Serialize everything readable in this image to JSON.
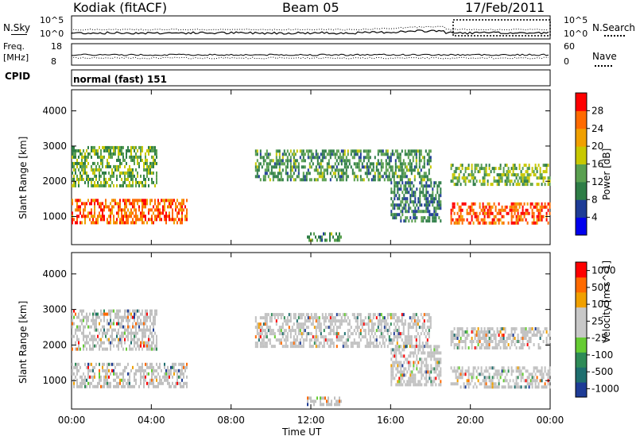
{
  "header": {
    "radar": "Kodiak (fitACF)",
    "beam": "Beam 05",
    "date": "17/Feb/2011"
  },
  "sky_panel": {
    "left_label": "N.Sky",
    "right_label": "N.Search",
    "left_ticks": [
      "10^5",
      "10^0"
    ],
    "right_ticks": [
      "10^5",
      "10^0"
    ]
  },
  "freq_panel": {
    "left_label_1": "Freq.",
    "left_label_2": "[MHz]",
    "right_label": "Nave",
    "left_ticks": [
      "18",
      "8"
    ],
    "right_ticks": [
      "60",
      "0"
    ]
  },
  "cpid": {
    "label": "CPID",
    "mode": "normal (fast) 151"
  },
  "colors": {
    "power_scale": [
      "#0000ee",
      "#1e3c96",
      "#2e7d46",
      "#5aa050",
      "#c8c800",
      "#f0a000",
      "#ff6a00",
      "#ff0000"
    ],
    "velocity_scale": [
      "#ff0000",
      "#ff6a00",
      "#f0a000",
      "#c8c8c8",
      "#c8c8c8",
      "#66cc33",
      "#2e8b57",
      "#1e6e6e",
      "#1e3c96"
    ],
    "ground_scatter": "#c0c0c0"
  },
  "chart_data": [
    {
      "type": "heatmap",
      "title": "",
      "xlabel": "Time UT",
      "ylabel": "Slant Range [km]",
      "xlim": [
        "00:00",
        "24:00"
      ],
      "ylim": [
        200,
        4600
      ],
      "x_ticks": [
        "00:00",
        "04:00",
        "08:00",
        "12:00",
        "16:00",
        "20:00",
        "00:00"
      ],
      "y_ticks": [
        1000,
        2000,
        3000,
        4000
      ],
      "colorbar": {
        "label": "Power [dB]",
        "min": 0,
        "max": 32,
        "ticks": [
          4,
          8,
          12,
          16,
          20,
          24,
          28
        ]
      },
      "echo_regions": [
        {
          "start_h": 0.0,
          "end_h": 5.8,
          "range_min": 800,
          "range_max": 1500,
          "value": 26
        },
        {
          "start_h": 0.0,
          "end_h": 4.3,
          "range_min": 1900,
          "range_max": 3000,
          "value": 14
        },
        {
          "start_h": 9.2,
          "end_h": 18.0,
          "range_min": 2000,
          "range_max": 2900,
          "value": 12
        },
        {
          "start_h": 16.0,
          "end_h": 18.5,
          "range_min": 900,
          "range_max": 2000,
          "value": 10
        },
        {
          "start_h": 19.0,
          "end_h": 24.0,
          "range_min": 800,
          "range_max": 1400,
          "value": 27
        },
        {
          "start_h": 19.0,
          "end_h": 24.0,
          "range_min": 1900,
          "range_max": 2500,
          "value": 15
        },
        {
          "start_h": 11.8,
          "end_h": 13.5,
          "range_min": 300,
          "range_max": 550,
          "value": 12
        }
      ]
    },
    {
      "type": "heatmap",
      "title": "",
      "xlabel": "Time UT",
      "ylabel": "Slant Range [km]",
      "xlim": [
        "00:00",
        "24:00"
      ],
      "ylim": [
        200,
        4600
      ],
      "x_ticks": [
        "00:00",
        "04:00",
        "08:00",
        "12:00",
        "16:00",
        "20:00",
        "00:00"
      ],
      "y_ticks": [
        1000,
        2000,
        3000,
        4000
      ],
      "colorbar": {
        "label": "Velocity [m s^-1]",
        "ticks": [
          "1000",
          "500",
          "100",
          "25",
          "-25",
          "-100",
          "-500",
          "-1000"
        ]
      },
      "echo_regions": [
        {
          "start_h": 0.0,
          "end_h": 5.8,
          "range_min": 800,
          "range_max": 1500,
          "value": 0
        },
        {
          "start_h": 0.0,
          "end_h": 4.3,
          "range_min": 1900,
          "range_max": 3000,
          "value": 0
        },
        {
          "start_h": 9.2,
          "end_h": 18.0,
          "range_min": 2000,
          "range_max": 2900,
          "value": 0
        },
        {
          "start_h": 16.0,
          "end_h": 18.5,
          "range_min": 900,
          "range_max": 2000,
          "value": 0
        },
        {
          "start_h": 19.0,
          "end_h": 24.0,
          "range_min": 800,
          "range_max": 1400,
          "value": 0
        },
        {
          "start_h": 19.0,
          "end_h": 24.0,
          "range_min": 1900,
          "range_max": 2500,
          "value": 0
        },
        {
          "start_h": 11.8,
          "end_h": 13.5,
          "range_min": 300,
          "range_max": 550,
          "value": 60
        }
      ]
    }
  ]
}
